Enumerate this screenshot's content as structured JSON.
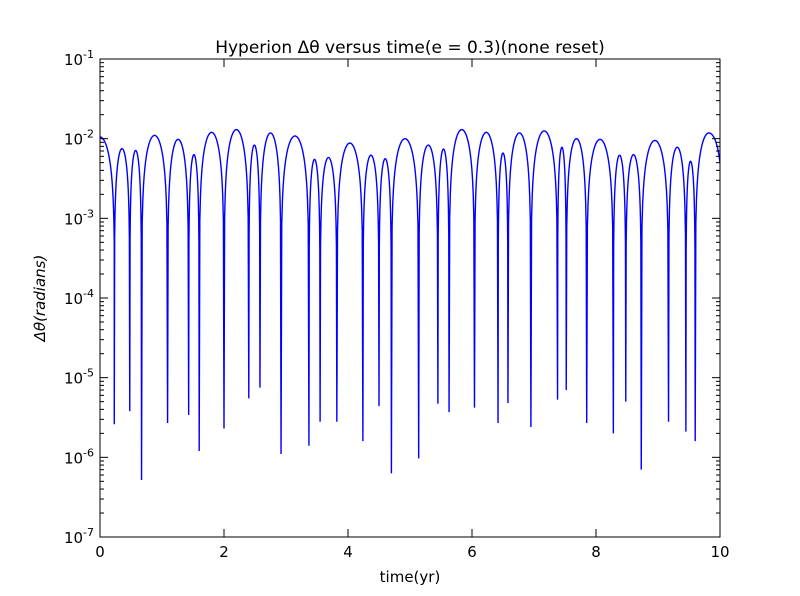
{
  "chart_data": {
    "type": "line",
    "title": "Hyperion Δθ versus time(e = 0.3)(none reset)",
    "xlabel": "time(yr)",
    "ylabel": "Δθ(radians)",
    "xlim": [
      0,
      10
    ],
    "ylim": [
      1e-07,
      0.1
    ],
    "yscale": "log",
    "grid": false,
    "legend": "none",
    "series_color": "#0000ff",
    "x_ticks": [
      {
        "value": 0,
        "label": "0"
      },
      {
        "value": 2,
        "label": "2"
      },
      {
        "value": 4,
        "label": "4"
      },
      {
        "value": 6,
        "label": "6"
      },
      {
        "value": 8,
        "label": "8"
      },
      {
        "value": 10,
        "label": "10"
      }
    ],
    "y_ticks": [
      {
        "value": 1e-07,
        "label": "10-7"
      },
      {
        "value": 1e-06,
        "label": "10-6"
      },
      {
        "value": 1e-05,
        "label": "10-5"
      },
      {
        "value": 0.0001,
        "label": "10-4"
      },
      {
        "value": 0.001,
        "label": "10-3"
      },
      {
        "value": 0.01,
        "label": "10-2"
      },
      {
        "value": 0.1,
        "label": "10-1"
      }
    ],
    "series": [
      {
        "start_value": 0.0105,
        "end_value": 0.005,
        "dips": [
          {
            "x": 0.23,
            "min": 2.6e-06
          },
          {
            "x": 0.48,
            "min": 3.8e-06
          },
          {
            "x": 0.67,
            "min": 5.2e-07
          },
          {
            "x": 1.09,
            "min": 2.7e-06
          },
          {
            "x": 1.43,
            "min": 3.4e-06
          },
          {
            "x": 1.6,
            "min": 1.2e-06
          },
          {
            "x": 2.0,
            "min": 2.3e-06
          },
          {
            "x": 2.4,
            "min": 5.5e-06
          },
          {
            "x": 2.58,
            "min": 7.5e-06
          },
          {
            "x": 2.92,
            "min": 1.1e-06
          },
          {
            "x": 3.37,
            "min": 1.4e-06
          },
          {
            "x": 3.55,
            "min": 2.8e-06
          },
          {
            "x": 3.82,
            "min": 2.8e-06
          },
          {
            "x": 4.24,
            "min": 1.6e-06
          },
          {
            "x": 4.5,
            "min": 4.4e-06
          },
          {
            "x": 4.7,
            "min": 6.3e-07
          },
          {
            "x": 5.14,
            "min": 9.7e-07
          },
          {
            "x": 5.45,
            "min": 4.7e-06
          },
          {
            "x": 5.63,
            "min": 3.7e-06
          },
          {
            "x": 6.04,
            "min": 4.2e-06
          },
          {
            "x": 6.42,
            "min": 2.7e-06
          },
          {
            "x": 6.58,
            "min": 4.8e-06
          },
          {
            "x": 6.95,
            "min": 2.4e-06
          },
          {
            "x": 7.38,
            "min": 5.3e-06
          },
          {
            "x": 7.52,
            "min": 7e-06
          },
          {
            "x": 7.85,
            "min": 2.7e-06
          },
          {
            "x": 8.28,
            "min": 2e-06
          },
          {
            "x": 8.48,
            "min": 5e-06
          },
          {
            "x": 8.73,
            "min": 7e-07
          },
          {
            "x": 9.17,
            "min": 2.8e-06
          },
          {
            "x": 9.45,
            "min": 2.1e-06
          },
          {
            "x": 9.6,
            "min": 1.6e-06
          }
        ],
        "peaks": [
          {
            "x": 0.38,
            "value": 0.0075
          },
          {
            "x": 0.58,
            "value": 0.0071
          },
          {
            "x": 0.88,
            "value": 0.011
          },
          {
            "x": 1.27,
            "value": 0.0098
          },
          {
            "x": 1.52,
            "value": 0.0063
          },
          {
            "x": 1.8,
            "value": 0.012
          },
          {
            "x": 2.22,
            "value": 0.013
          },
          {
            "x": 2.49,
            "value": 0.0083
          },
          {
            "x": 2.75,
            "value": 0.0118
          },
          {
            "x": 3.15,
            "value": 0.0108
          },
          {
            "x": 3.46,
            "value": 0.0055
          },
          {
            "x": 3.69,
            "value": 0.0058
          },
          {
            "x": 4.03,
            "value": 0.0088
          },
          {
            "x": 4.37,
            "value": 0.0062
          },
          {
            "x": 4.6,
            "value": 0.0056
          },
          {
            "x": 4.92,
            "value": 0.01
          },
          {
            "x": 5.3,
            "value": 0.0083
          },
          {
            "x": 5.54,
            "value": 0.0074
          },
          {
            "x": 5.83,
            "value": 0.013
          },
          {
            "x": 6.23,
            "value": 0.012
          },
          {
            "x": 6.5,
            "value": 0.0066
          },
          {
            "x": 6.77,
            "value": 0.0118
          },
          {
            "x": 7.17,
            "value": 0.0125
          },
          {
            "x": 7.45,
            "value": 0.0078
          },
          {
            "x": 7.68,
            "value": 0.01
          },
          {
            "x": 8.07,
            "value": 0.0098
          },
          {
            "x": 8.38,
            "value": 0.0062
          },
          {
            "x": 8.6,
            "value": 0.0063
          },
          {
            "x": 8.95,
            "value": 0.0095
          },
          {
            "x": 9.31,
            "value": 0.0078
          },
          {
            "x": 9.52,
            "value": 0.0052
          },
          {
            "x": 9.82,
            "value": 0.0118
          }
        ]
      }
    ]
  }
}
